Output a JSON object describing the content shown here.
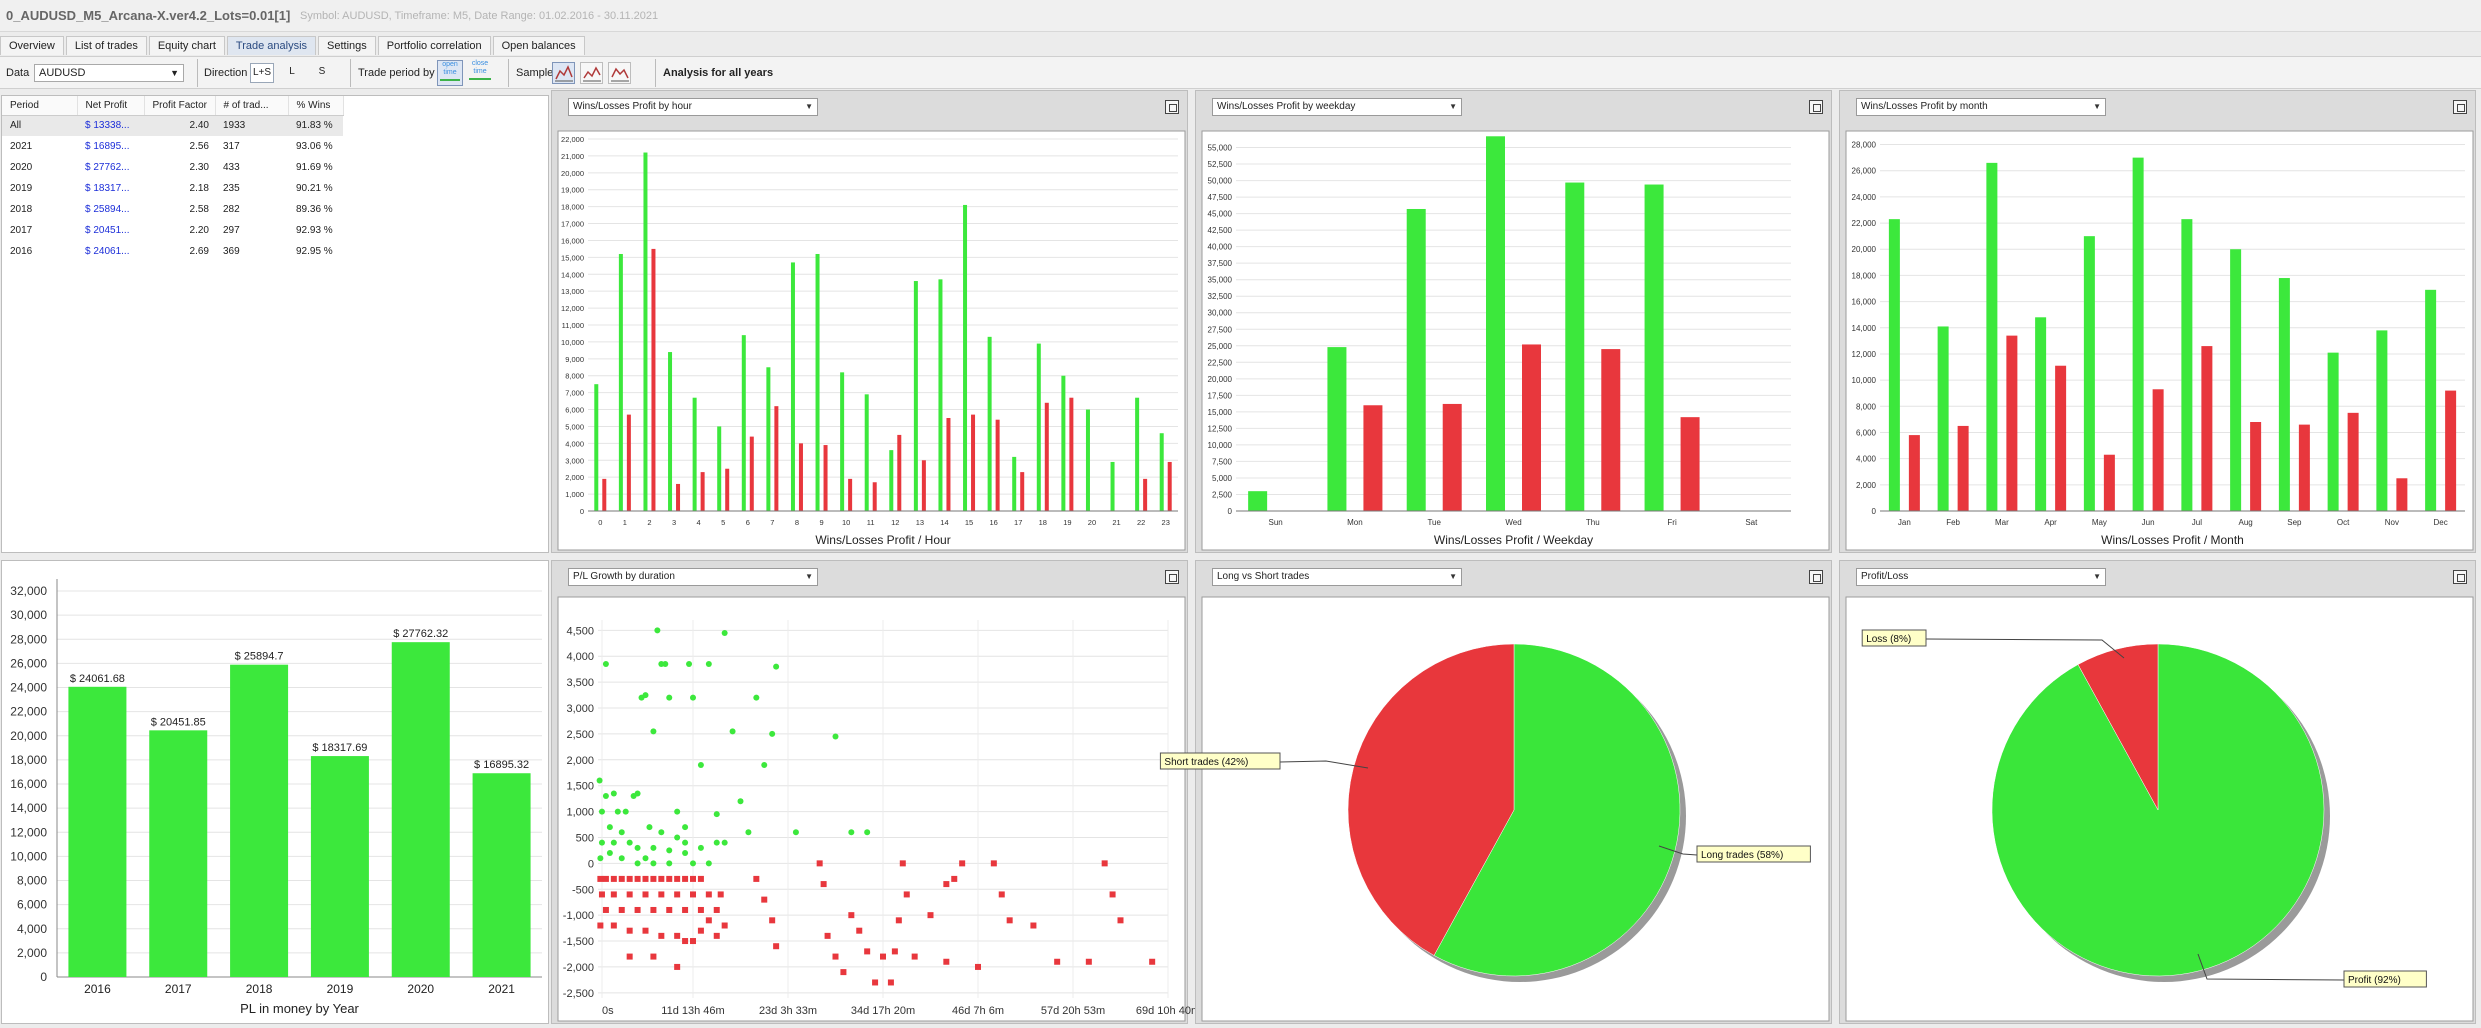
{
  "window": {
    "title": "0_AUDUSD_M5_Arcana-X.ver4.2_Lots=0.01[1]",
    "info": "Symbol: AUDUSD, Timeframe: M5, Date Range: 01.02.2016 - 30.11.2021"
  },
  "tabs": [
    {
      "label": "Overview"
    },
    {
      "label": "List of trades"
    },
    {
      "label": "Equity chart"
    },
    {
      "label": "Trade analysis",
      "active": true
    },
    {
      "label": "Settings"
    },
    {
      "label": "Portfolio correlation"
    },
    {
      "label": "Open balances"
    }
  ],
  "toolbar": {
    "data_label": "Data",
    "data_value": "AUDUSD",
    "direction_label": "Direction",
    "dir_both": "L+S",
    "dir_long": "L",
    "dir_short": "S",
    "trade_period_label": "Trade period by",
    "open_time": "open time",
    "close_time": "close time",
    "sample_label": "Sample",
    "analysis_title": "Analysis for all years"
  },
  "table": {
    "headers": [
      "Period",
      "Net Profit",
      "Profit Factor",
      "# of trad...",
      "% Wins"
    ],
    "rows": [
      [
        "All",
        "$ 13338...",
        "2.40",
        "1933",
        "91.83 %"
      ],
      [
        "2021",
        "$ 16895...",
        "2.56",
        "317",
        "93.06 %"
      ],
      [
        "2020",
        "$ 27762...",
        "2.30",
        "433",
        "91.69 %"
      ],
      [
        "2019",
        "$ 18317...",
        "2.18",
        "235",
        "90.21 %"
      ],
      [
        "2018",
        "$ 25894...",
        "2.58",
        "282",
        "89.36 %"
      ],
      [
        "2017",
        "$ 20451...",
        "2.20",
        "297",
        "92.93 %"
      ],
      [
        "2016",
        "$ 24061...",
        "2.69",
        "369",
        "92.95 %"
      ]
    ]
  },
  "panels": {
    "hour": "Wins/Losses Profit by hour",
    "weekday": "Wins/Losses Profit by weekday",
    "month": "Wins/Losses Profit by month",
    "duration": "P/L Growth by duration",
    "longshort": "Long vs Short trades",
    "profitloss": "Profit/Loss"
  },
  "colors": {
    "win": "#3ce83c",
    "loss": "#e8373d",
    "pie_green": "#3ae63a",
    "pie_red": "#e8373c"
  },
  "chart_data": [
    {
      "id": "hour",
      "type": "bar",
      "xlabel": "Wins/Losses Profit / Hour",
      "categories": [
        "0",
        "1",
        "2",
        "3",
        "4",
        "5",
        "6",
        "7",
        "8",
        "9",
        "10",
        "11",
        "12",
        "13",
        "14",
        "15",
        "16",
        "17",
        "18",
        "19",
        "20",
        "21",
        "22",
        "23"
      ],
      "series": [
        {
          "values": [
            7500,
            15200,
            21200,
            9400,
            6700,
            5000,
            10400,
            8500,
            14700,
            15200,
            8200,
            6900,
            3600,
            13600,
            13700,
            18100,
            10300,
            3200,
            9900,
            8000,
            6000,
            2900,
            6700,
            4600
          ]
        },
        {
          "values": [
            1900,
            5700,
            15500,
            1600,
            2300,
            2500,
            4400,
            6200,
            4000,
            3900,
            1900,
            1700,
            4500,
            3000,
            5500,
            5700,
            5400,
            2300,
            6400,
            6700,
            0,
            0,
            1900,
            2900
          ]
        }
      ],
      "ylim": [
        0,
        22000
      ],
      "yticks": [
        "0",
        "1,000",
        "2,000",
        "3,000",
        "4,000",
        "5,000",
        "6,000",
        "7,000",
        "8,000",
        "9,000",
        "10,000",
        "11,000",
        "12,000",
        "13,000",
        "14,000",
        "15,000",
        "16,000",
        "17,000",
        "18,000",
        "19,000",
        "20,000",
        "21,000",
        "22,000"
      ]
    },
    {
      "id": "weekday",
      "type": "bar",
      "xlabel": "Wins/Losses Profit / Weekday",
      "categories": [
        "Sun",
        "Mon",
        "Tue",
        "Wed",
        "Thu",
        "Fri",
        "Sat"
      ],
      "series": [
        {
          "values": [
            3000,
            24800,
            45700,
            56700,
            49700,
            49400,
            0
          ]
        },
        {
          "values": [
            0,
            16000,
            16200,
            25200,
            24500,
            14200,
            0
          ]
        }
      ],
      "ylim": [
        0,
        57500
      ],
      "yticks": [
        "0",
        "2,500",
        "5,000",
        "7,500",
        "10,000",
        "12,500",
        "15,000",
        "17,500",
        "20,000",
        "22,500",
        "25,000",
        "27,500",
        "30,000",
        "32,500",
        "35,000",
        "37,500",
        "40,000",
        "42,500",
        "45,000",
        "47,500",
        "50,000",
        "52,500",
        "55,000"
      ]
    },
    {
      "id": "month",
      "type": "bar",
      "xlabel": "Wins/Losses Profit / Month",
      "categories": [
        "Jan",
        "Feb",
        "Mar",
        "Apr",
        "May",
        "Jun",
        "Jul",
        "Aug",
        "Sep",
        "Oct",
        "Nov",
        "Dec"
      ],
      "series": [
        {
          "values": [
            22300,
            14100,
            26600,
            14800,
            21000,
            27000,
            22300,
            20000,
            17800,
            12100,
            13800,
            16900
          ]
        },
        {
          "values": [
            5800,
            6500,
            13400,
            11100,
            4300,
            9300,
            12600,
            6800,
            6600,
            7500,
            2500,
            9200
          ]
        }
      ],
      "ylim": [
        0,
        28500
      ],
      "yticks": [
        "0",
        "2,000",
        "4,000",
        "6,000",
        "8,000",
        "10,000",
        "12,000",
        "14,000",
        "16,000",
        "18,000",
        "20,000",
        "22,000",
        "24,000",
        "26,000",
        "28,000"
      ]
    },
    {
      "id": "year",
      "type": "bar",
      "xlabel": "PL in money by Year",
      "categories": [
        "2016",
        "2017",
        "2018",
        "2019",
        "2020",
        "2021"
      ],
      "values": [
        24061.68,
        20451.85,
        25894.7,
        18317.69,
        27762.32,
        16895.32
      ],
      "labels": [
        "$ 24061.68",
        "$ 20451.85",
        "$ 25894.7",
        "$ 18317.69",
        "$ 27762.32",
        "$ 16895.32"
      ],
      "ylim": [
        0,
        33000
      ],
      "yticks": [
        "0",
        "2,000",
        "4,000",
        "6,000",
        "8,000",
        "10,000",
        "12,000",
        "14,000",
        "16,000",
        "18,000",
        "20,000",
        "22,000",
        "24,000",
        "26,000",
        "28,000",
        "30,000",
        "32,000"
      ]
    },
    {
      "id": "duration",
      "type": "scatter",
      "xticks": [
        "0s",
        "11d 13h 46m",
        "23d 3h 33m",
        "34d 17h 20m",
        "46d 7h 6m",
        "57d 20h 53m",
        "69d 10h 40m"
      ],
      "xlim": [
        0,
        72
      ],
      "ylim": [
        -2600,
        4700
      ],
      "yticks": [
        "-2,500",
        "-2,000",
        "-1,500",
        "-1,000",
        "-500",
        "0",
        "500",
        "1,000",
        "1,500",
        "2,000",
        "2,500",
        "3,000",
        "3,500",
        "4,000",
        "4,500"
      ],
      "wins": [
        [
          0.2,
          1600
        ],
        [
          0.5,
          1000
        ],
        [
          1,
          3850
        ],
        [
          2,
          1350
        ],
        [
          1.5,
          700
        ],
        [
          2.5,
          1000
        ],
        [
          3.5,
          1000
        ],
        [
          4.5,
          1300
        ],
        [
          5,
          1350
        ],
        [
          5.5,
          3200
        ],
        [
          6,
          3250
        ],
        [
          6.5,
          700
        ],
        [
          7,
          2550
        ],
        [
          7.5,
          4500
        ],
        [
          8,
          3850
        ],
        [
          8.5,
          3850
        ],
        [
          9,
          3200
        ],
        [
          10,
          1000
        ],
        [
          11,
          700
        ],
        [
          11.5,
          3850
        ],
        [
          12,
          3200
        ],
        [
          13,
          1900
        ],
        [
          14,
          3850
        ],
        [
          15,
          400
        ],
        [
          16,
          4450
        ],
        [
          17,
          2550
        ],
        [
          19,
          600
        ],
        [
          20,
          3200
        ],
        [
          21,
          1900
        ],
        [
          22,
          2500
        ],
        [
          22.5,
          3800
        ],
        [
          25,
          600
        ],
        [
          30,
          2450
        ],
        [
          32,
          600
        ],
        [
          34,
          600
        ],
        [
          1,
          1300
        ],
        [
          3,
          600
        ],
        [
          5,
          300
        ],
        [
          7,
          300
        ],
        [
          9,
          250
        ],
        [
          11,
          200
        ],
        [
          13,
          300
        ],
        [
          15,
          950
        ],
        [
          18,
          1200
        ],
        [
          0.5,
          400
        ],
        [
          2,
          400
        ],
        [
          4,
          400
        ],
        [
          6,
          100
        ],
        [
          8,
          600
        ],
        [
          10,
          500
        ],
        [
          12,
          0
        ],
        [
          14,
          0
        ],
        [
          16,
          400
        ],
        [
          3,
          100
        ],
        [
          5,
          0
        ],
        [
          7,
          0
        ],
        [
          9,
          0
        ],
        [
          11,
          400
        ],
        [
          0.3,
          100
        ],
        [
          1.5,
          200
        ]
      ],
      "losses": [
        [
          0.3,
          -300
        ],
        [
          1,
          -300
        ],
        [
          2,
          -300
        ],
        [
          3,
          -300
        ],
        [
          4,
          -300
        ],
        [
          5,
          -300
        ],
        [
          6,
          -300
        ],
        [
          7,
          -300
        ],
        [
          8,
          -300
        ],
        [
          9,
          -300
        ],
        [
          10,
          -300
        ],
        [
          11,
          -300
        ],
        [
          12,
          -300
        ],
        [
          13,
          -300
        ],
        [
          0.5,
          -600
        ],
        [
          2,
          -600
        ],
        [
          4,
          -600
        ],
        [
          6,
          -600
        ],
        [
          8,
          -600
        ],
        [
          10,
          -600
        ],
        [
          12,
          -600
        ],
        [
          14,
          -600
        ],
        [
          15.5,
          -600
        ],
        [
          1,
          -900
        ],
        [
          3,
          -900
        ],
        [
          5,
          -900
        ],
        [
          7,
          -900
        ],
        [
          9,
          -900
        ],
        [
          11,
          -900
        ],
        [
          13,
          -900
        ],
        [
          15,
          -900
        ],
        [
          0.3,
          -1200
        ],
        [
          2,
          -1200
        ],
        [
          4,
          -1300
        ],
        [
          6,
          -1300
        ],
        [
          8,
          -1400
        ],
        [
          10,
          -1400
        ],
        [
          12,
          -1500
        ],
        [
          14,
          -1100
        ],
        [
          16,
          -1200
        ],
        [
          4,
          -1800
        ],
        [
          7,
          -1800
        ],
        [
          10,
          -2000
        ],
        [
          11,
          -1500
        ],
        [
          13,
          -1300
        ],
        [
          15,
          -1400
        ],
        [
          20,
          -300
        ],
        [
          21,
          -700
        ],
        [
          22,
          -1100
        ],
        [
          22.5,
          -1600
        ],
        [
          28,
          0
        ],
        [
          28.5,
          -400
        ],
        [
          29,
          -1400
        ],
        [
          30,
          -1800
        ],
        [
          31,
          -2100
        ],
        [
          32,
          -1000
        ],
        [
          33,
          -1300
        ],
        [
          34,
          -1700
        ],
        [
          35,
          -2300
        ],
        [
          36,
          -1800
        ],
        [
          37,
          -2300
        ],
        [
          38,
          -1100
        ],
        [
          39,
          -600
        ],
        [
          40,
          -1800
        ],
        [
          37.5,
          -1700
        ],
        [
          42,
          -1000
        ],
        [
          44,
          -1900
        ],
        [
          44,
          -400
        ],
        [
          46,
          0
        ],
        [
          48,
          -2000
        ],
        [
          50,
          0
        ],
        [
          51,
          -600
        ],
        [
          52,
          -1100
        ],
        [
          55,
          -1200
        ],
        [
          58,
          -1900
        ],
        [
          62,
          -1900
        ],
        [
          64,
          0
        ],
        [
          65,
          -600
        ],
        [
          66,
          -1100
        ],
        [
          70,
          -1900
        ],
        [
          38.5,
          0
        ],
        [
          45,
          -300
        ]
      ]
    },
    {
      "id": "longshort",
      "type": "pie",
      "labels": [
        "Long trades (58%)",
        "Short trades (42%)"
      ],
      "values": [
        58,
        42
      ]
    },
    {
      "id": "profitloss",
      "type": "pie",
      "labels": [
        "Profit (92%)",
        "Loss (8%)"
      ],
      "values": [
        92,
        8
      ]
    }
  ]
}
